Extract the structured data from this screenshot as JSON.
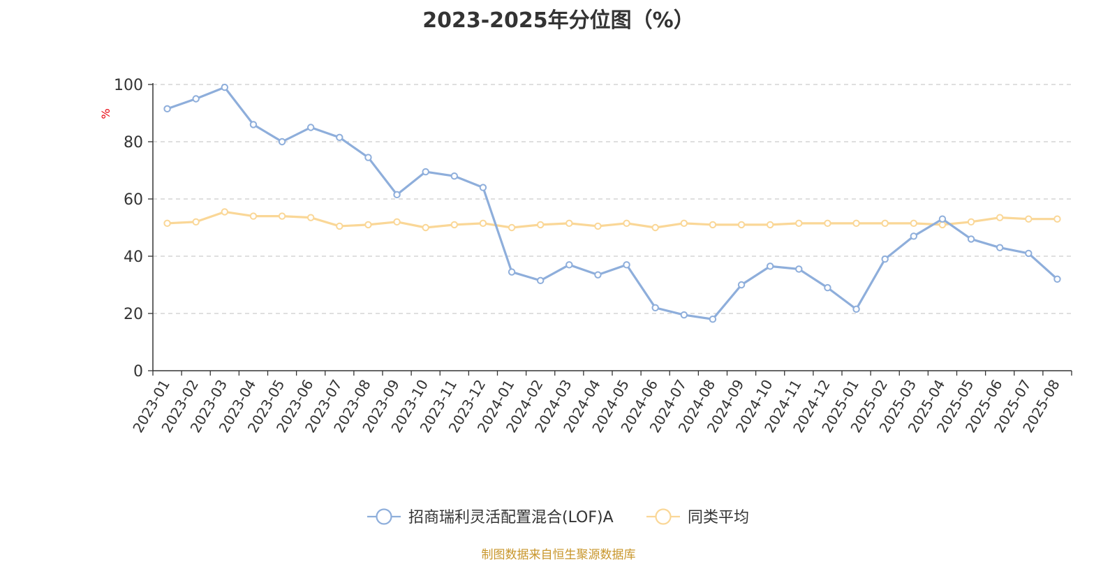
{
  "title": "2023-2025年分位图（%）",
  "source": "制图数据来自恒生聚源数据库",
  "colors": {
    "series_main": "#8eaedb",
    "series_avg": "#fad797",
    "grid": "#cccccc",
    "axis": "#333333",
    "unit": "#e8000b",
    "source": "#c8962b"
  },
  "chart_data": {
    "type": "line",
    "title": "2023-2025年分位图（%）",
    "ylabel": "%",
    "xlabel": "",
    "ylim": [
      0,
      100
    ],
    "yticks": [
      "0",
      "20",
      "40",
      "60",
      "80",
      "100"
    ],
    "grid": true,
    "legend_position": "bottom",
    "categories": [
      "2023-01",
      "2023-02",
      "2023-03",
      "2023-04",
      "2023-05",
      "2023-06",
      "2023-07",
      "2023-08",
      "2023-09",
      "2023-10",
      "2023-11",
      "2023-12",
      "2024-01",
      "2024-02",
      "2024-03",
      "2024-04",
      "2024-05",
      "2024-06",
      "2024-07",
      "2024-08",
      "2024-09",
      "2024-10",
      "2024-11",
      "2024-12",
      "2025-01",
      "2025-02",
      "2025-03",
      "2025-04",
      "2025-05",
      "2025-06",
      "2025-07",
      "2025-08"
    ],
    "series": [
      {
        "name": "招商瑞利灵活配置混合(LOF)A",
        "color": "#8eaedb",
        "values": [
          91.5,
          95.0,
          99.0,
          86.0,
          80.0,
          85.0,
          81.5,
          74.5,
          61.5,
          69.5,
          68.0,
          64.0,
          34.5,
          31.5,
          37.0,
          33.5,
          37.0,
          22.0,
          19.5,
          18.0,
          30.0,
          36.5,
          35.5,
          29.0,
          21.5,
          39.0,
          47.0,
          53.0,
          46.0,
          43.0,
          41.0,
          32.0
        ]
      },
      {
        "name": "同类平均",
        "color": "#fad797",
        "values": [
          51.5,
          52.0,
          55.5,
          54.0,
          54.0,
          53.5,
          50.5,
          51.0,
          52.0,
          50.0,
          51.0,
          51.5,
          50.0,
          51.0,
          51.5,
          50.5,
          51.5,
          50.0,
          51.5,
          51.0,
          51.0,
          51.0,
          51.5,
          51.5,
          51.5,
          51.5,
          51.5,
          51.0,
          52.0,
          53.5,
          53.0,
          53.0
        ]
      }
    ]
  }
}
